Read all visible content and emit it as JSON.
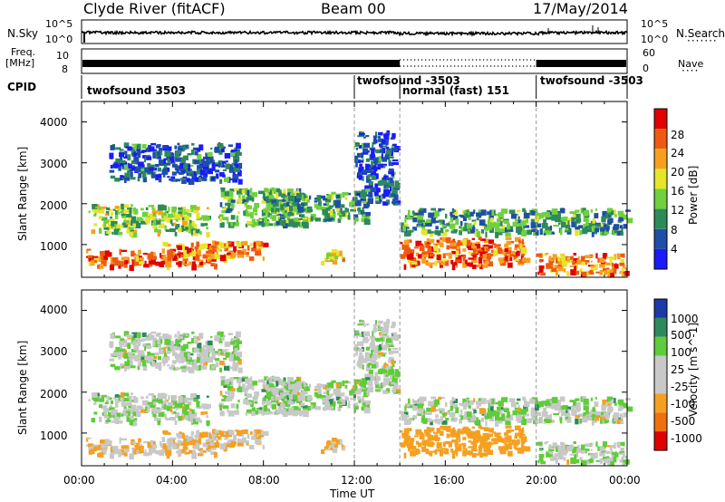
{
  "header": {
    "station": "Clyde River (fitACF)",
    "beam": "Beam 00",
    "date": "17/May/2014"
  },
  "aux": {
    "nsky_label": "N.Sky",
    "nsearch_label": "N.Search",
    "nsky_ticks": [
      "10^5",
      "10^0"
    ],
    "nsearch_ticks": [
      "10^5",
      "10^0"
    ],
    "freq_label_1": "Freq.",
    "freq_label_2": "[MHz]",
    "freq_ticks": [
      "10",
      "8"
    ],
    "nave_label": "Nave",
    "nave_ticks": [
      "60",
      "0"
    ],
    "cpid_label": "CPID",
    "cpid_segments": [
      {
        "start_ut": 0,
        "end_ut": 12.0,
        "text": "twofsound 3503"
      },
      {
        "start_ut": 12.0,
        "end_ut": 14.0,
        "text": "twofsound -3503"
      },
      {
        "start_ut": 14.0,
        "end_ut": 20.0,
        "text": "normal (fast) 151"
      },
      {
        "start_ut": 20.0,
        "end_ut": 24.0,
        "text": "twofsound -3503"
      }
    ]
  },
  "chart_data": [
    {
      "type": "heatmap",
      "title": "",
      "xlabel": "Time UT",
      "ylabel": "Slant Range [km]",
      "xlim": [
        0,
        24
      ],
      "ylim": [
        200,
        4500
      ],
      "x_ticks": [
        "00:00",
        "04:00",
        "08:00",
        "12:00",
        "16:00",
        "20:00",
        "00:00"
      ],
      "y_ticks": [
        1000,
        2000,
        3000,
        4000
      ],
      "colorbar": {
        "label": "Power [dB]",
        "ticks": [
          4,
          8,
          12,
          16,
          20,
          24,
          28
        ],
        "range": [
          0,
          30
        ],
        "colors": [
          "#1a1aff",
          "#1e4fa8",
          "#2e8a5a",
          "#6fd13d",
          "#e5e52a",
          "#f7a020",
          "#ef5a10",
          "#e00000"
        ]
      },
      "echo_bands": [
        {
          "t0": 0.2,
          "t1": 6.0,
          "r0": 500,
          "r1": 900,
          "power": 24
        },
        {
          "t0": 0.3,
          "t1": 5.5,
          "r0": 1300,
          "r1": 2000,
          "power": 14
        },
        {
          "t0": 3.5,
          "t1": 8.0,
          "r0": 700,
          "r1": 1100,
          "power": 22
        },
        {
          "t0": 6.0,
          "t1": 10.0,
          "r0": 1500,
          "r1": 2400,
          "power": 12
        },
        {
          "t0": 8.0,
          "t1": 12.5,
          "r0": 1600,
          "r1": 2300,
          "power": 10
        },
        {
          "t0": 1.2,
          "t1": 7.0,
          "r0": 2600,
          "r1": 3500,
          "power": 6
        },
        {
          "t0": 10.5,
          "t1": 11.5,
          "r0": 600,
          "r1": 900,
          "power": 18
        },
        {
          "t0": 14.0,
          "t1": 19.5,
          "r0": 500,
          "r1": 1200,
          "power": 24
        },
        {
          "t0": 14.0,
          "t1": 24.0,
          "r0": 1300,
          "r1": 1900,
          "power": 10
        },
        {
          "t0": 20.0,
          "t1": 24.0,
          "r0": 300,
          "r1": 800,
          "power": 22
        },
        {
          "t0": 12.0,
          "t1": 13.8,
          "r0": 2000,
          "r1": 3800,
          "power": 6
        }
      ]
    },
    {
      "type": "heatmap",
      "title": "",
      "xlabel": "Time UT",
      "ylabel": "Slant Range [km]",
      "xlim": [
        0,
        24
      ],
      "ylim": [
        200,
        4500
      ],
      "x_ticks": [
        "00:00",
        "04:00",
        "08:00",
        "12:00",
        "16:00",
        "20:00",
        "00:00"
      ],
      "y_ticks": [
        1000,
        2000,
        3000,
        4000
      ],
      "colorbar": {
        "label": "Velocity [m s^-1]",
        "ticks": [
          1000,
          500,
          100,
          25,
          -25,
          -100,
          -500,
          -1000
        ],
        "colors": [
          "#1a3aa8",
          "#2e8a5a",
          "#5fcc3a",
          "#c8c8c8",
          "#c8c8c8",
          "#f5a020",
          "#f07010",
          "#e00000"
        ]
      },
      "echo_bands": [
        {
          "t0": 0.2,
          "t1": 6.0,
          "r0": 500,
          "r1": 900,
          "velocity": -100
        },
        {
          "t0": 0.3,
          "t1": 5.5,
          "r0": 1300,
          "r1": 2000,
          "velocity": 0
        },
        {
          "t0": 3.5,
          "t1": 8.0,
          "r0": 700,
          "r1": 1100,
          "velocity": -100
        },
        {
          "t0": 6.0,
          "t1": 10.0,
          "r0": 1500,
          "r1": 2400,
          "velocity": 0
        },
        {
          "t0": 8.0,
          "t1": 12.5,
          "r0": 1600,
          "r1": 2300,
          "velocity": 0
        },
        {
          "t0": 1.2,
          "t1": 7.0,
          "r0": 2600,
          "r1": 3500,
          "velocity": 0
        },
        {
          "t0": 10.5,
          "t1": 11.5,
          "r0": 600,
          "r1": 900,
          "velocity": -100
        },
        {
          "t0": 14.0,
          "t1": 19.5,
          "r0": 500,
          "r1": 1200,
          "velocity": -300
        },
        {
          "t0": 14.0,
          "t1": 24.0,
          "r0": 1300,
          "r1": 1900,
          "velocity": 0
        },
        {
          "t0": 20.0,
          "t1": 24.0,
          "r0": 300,
          "r1": 800,
          "velocity": 0
        },
        {
          "t0": 12.0,
          "t1": 13.8,
          "r0": 2000,
          "r1": 3800,
          "velocity": 0
        }
      ]
    }
  ]
}
